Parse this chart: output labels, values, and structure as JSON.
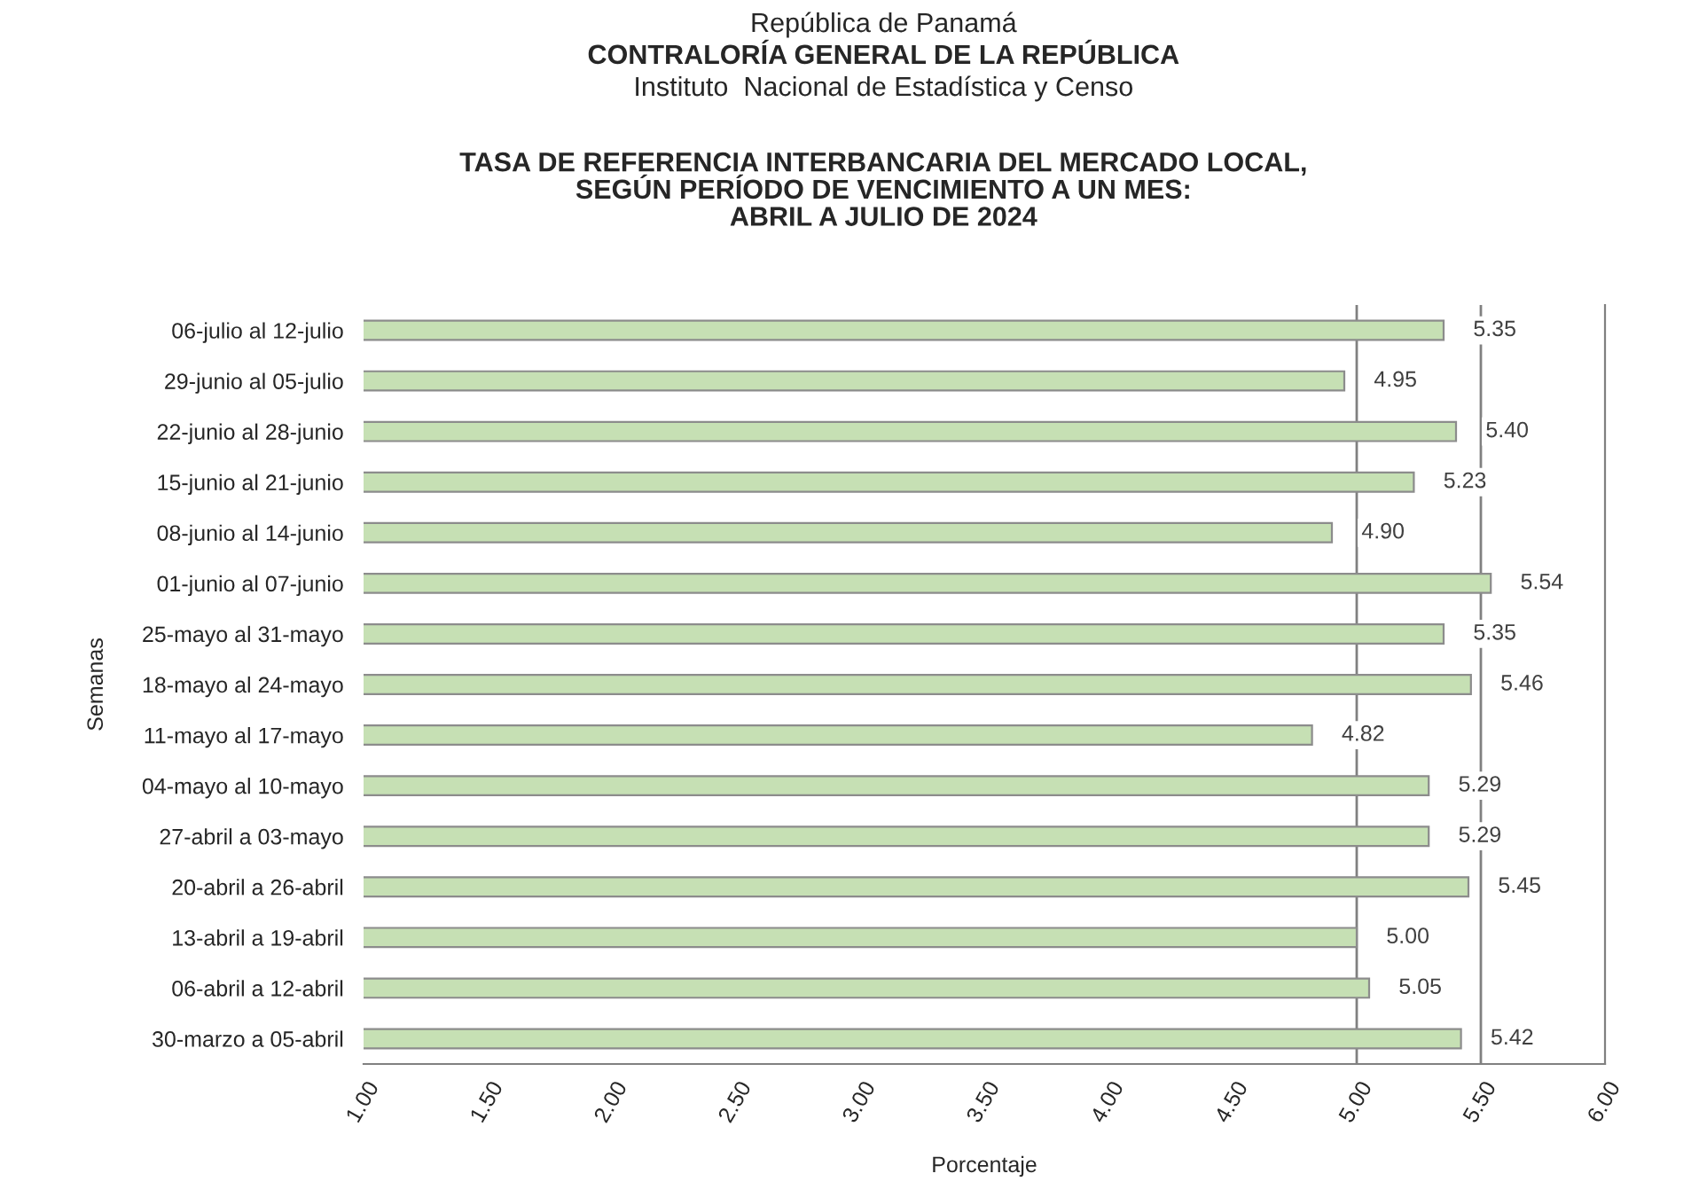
{
  "chart_data": {
    "type": "bar",
    "orientation": "horizontal",
    "title": "TASA DE REFERENCIA INTERBANCARIA DEL MERCADO LOCAL,\nSEGÚN PERÍODO DE VENCIMIENTO A UN MES:\nABRIL A JULIO DE 2024",
    "annotations": [
      "República de Panamá",
      "CONTRALORÍA GENERAL DE LA REPÚBLICA",
      "Instituto  Nacional de Estadística y Censo"
    ],
    "xlabel": "Porcentaje",
    "ylabel": "Semanas",
    "categories": [
      "06-julio al 12-julio",
      "29-junio al 05-julio",
      "22-junio al 28-junio",
      "15-junio al 21-junio",
      "08-junio al 14-junio",
      "01-junio al 07-junio",
      "25-mayo al 31-mayo",
      "18-mayo al 24-mayo",
      "11-mayo al 17-mayo",
      "04-mayo al 10-mayo",
      "27-abril a 03-mayo",
      "20-abril a 26-abril",
      "13-abril a 19-abril",
      "06-abril a 12-abril",
      "30-marzo a 05-abril"
    ],
    "series": [
      {
        "color": "#c6e0b4",
        "values": [
          5.35,
          4.95,
          5.4,
          5.23,
          4.9,
          5.54,
          5.35,
          5.46,
          4.82,
          5.29,
          5.29,
          5.45,
          5.0,
          5.05,
          5.42
        ]
      }
    ],
    "value_labels": [
      "5.35",
      "4.95",
      "5.40",
      "5.23",
      "4.90",
      "5.54",
      "5.35",
      "5.46",
      "4.82",
      "5.29",
      "5.29",
      "5.45",
      "5.00",
      "5.05",
      "5.42"
    ],
    "xlim": [
      1,
      6
    ],
    "xticks": [
      {
        "value": 1,
        "label": "1.00"
      },
      {
        "value": 1.5,
        "label": "1.50"
      },
      {
        "value": 2,
        "label": "2.00"
      },
      {
        "value": 2.5,
        "label": "2.50"
      },
      {
        "value": 3,
        "label": "3.00"
      },
      {
        "value": 3.5,
        "label": "3.50"
      },
      {
        "value": 4,
        "label": "4.00"
      },
      {
        "value": 4.5,
        "label": "4.50"
      },
      {
        "value": 5,
        "label": "5.00"
      },
      {
        "value": 5.5,
        "label": "5.50"
      },
      {
        "value": 6,
        "label": "6.00"
      }
    ],
    "ref_lines": [
      {
        "axis": "x",
        "value": 5.0,
        "color": "#808080"
      },
      {
        "axis": "x",
        "value": 5.5,
        "color": "#808080"
      }
    ],
    "grid": false,
    "legend": false
  }
}
